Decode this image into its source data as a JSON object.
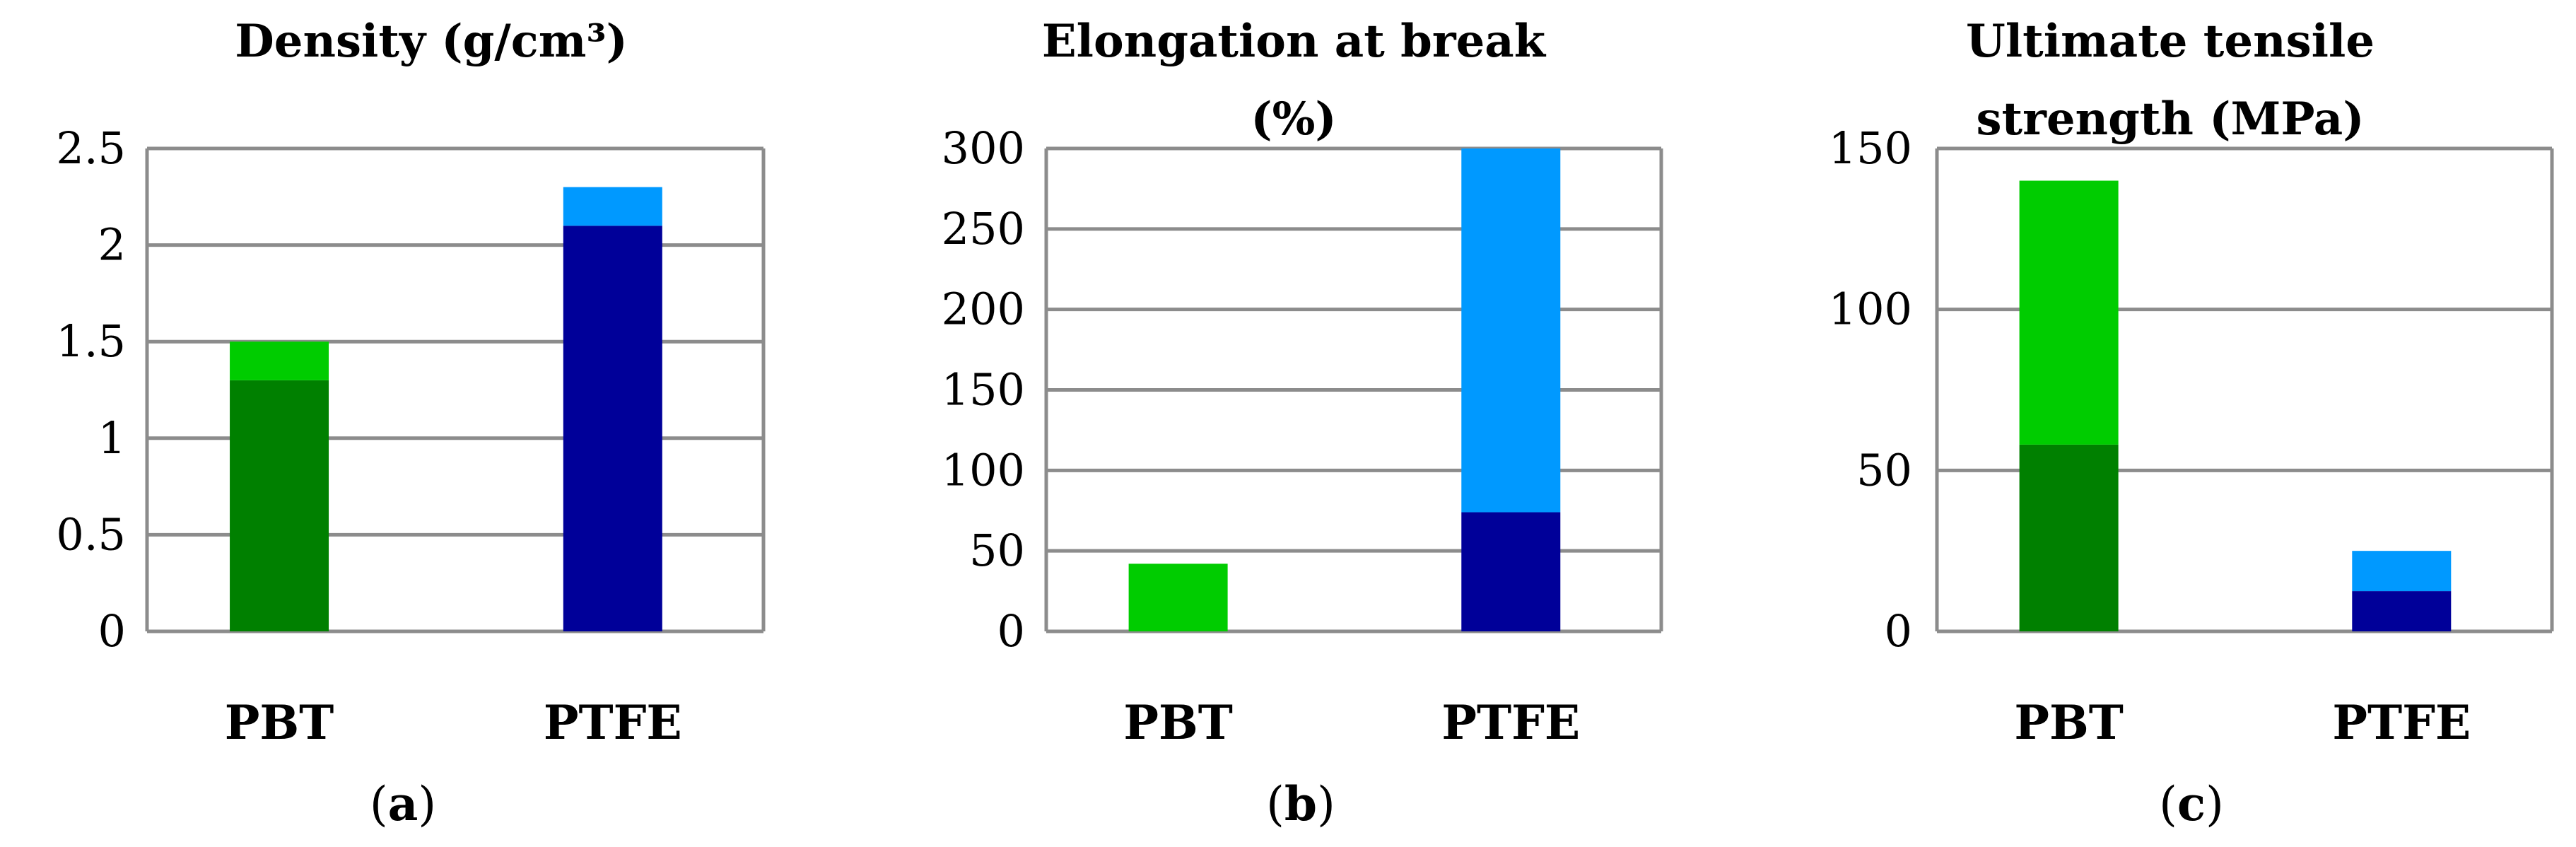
{
  "colors": {
    "pbt_base": "#008000",
    "pbt_top": "#00cc00",
    "ptfe_base": "#000099",
    "ptfe_top": "#0099ff",
    "grid": "#8c8c8c"
  },
  "chart_data": [
    {
      "type": "bar",
      "stacked": true,
      "title_lines": [
        "Density (g/cm³)"
      ],
      "categories": [
        "PBT",
        "PTFE"
      ],
      "segments": [
        {
          "category": "PBT",
          "from": 0,
          "to": 1.3,
          "color": "pbt_base"
        },
        {
          "category": "PBT",
          "from": 1.3,
          "to": 1.5,
          "color": "pbt_top"
        },
        {
          "category": "PTFE",
          "from": 0,
          "to": 2.1,
          "color": "ptfe_base"
        },
        {
          "category": "PTFE",
          "from": 2.1,
          "to": 2.3,
          "color": "ptfe_top"
        }
      ],
      "yticks": [
        "0",
        "0.5",
        "1",
        "1.5",
        "2",
        "2.5"
      ],
      "ytick_values": [
        0,
        0.5,
        1,
        1.5,
        2,
        2.5
      ],
      "ylim": [
        0,
        2.5
      ],
      "grid": true,
      "label_open": "(",
      "label_letter": "a",
      "label_close": ")"
    },
    {
      "type": "bar",
      "stacked": true,
      "title_lines": [
        "Elongation at break",
        "(%)"
      ],
      "categories": [
        "PBT",
        "PTFE"
      ],
      "segments": [
        {
          "category": "PBT",
          "from": 0,
          "to": 42,
          "color": "pbt_top"
        },
        {
          "category": "PTFE",
          "from": 0,
          "to": 74,
          "color": "ptfe_base"
        },
        {
          "category": "PTFE",
          "from": 74,
          "to": 300,
          "color": "ptfe_top"
        }
      ],
      "yticks": [
        "0",
        "50",
        "100",
        "150",
        "200",
        "250",
        "300"
      ],
      "ytick_values": [
        0,
        50,
        100,
        150,
        200,
        250,
        300
      ],
      "ylim": [
        0,
        300
      ],
      "grid": true,
      "label_open": "(",
      "label_letter": "b",
      "label_close": ")"
    },
    {
      "type": "bar",
      "stacked": true,
      "title_lines": [
        "Ultimate tensile",
        "strength (MPa)"
      ],
      "categories": [
        "PBT",
        "PTFE"
      ],
      "segments": [
        {
          "category": "PBT",
          "from": 0,
          "to": 58,
          "color": "pbt_base"
        },
        {
          "category": "PBT",
          "from": 58,
          "to": 140,
          "color": "pbt_top"
        },
        {
          "category": "PTFE",
          "from": 0,
          "to": 12.5,
          "color": "ptfe_base"
        },
        {
          "category": "PTFE",
          "from": 12.5,
          "to": 25,
          "color": "ptfe_top"
        }
      ],
      "yticks": [
        "0",
        "50",
        "100",
        "150"
      ],
      "ytick_values": [
        0,
        50,
        100,
        150
      ],
      "ylim": [
        0,
        150
      ],
      "grid": true,
      "label_open": "(",
      "label_letter": "c",
      "label_close": ")"
    }
  ]
}
